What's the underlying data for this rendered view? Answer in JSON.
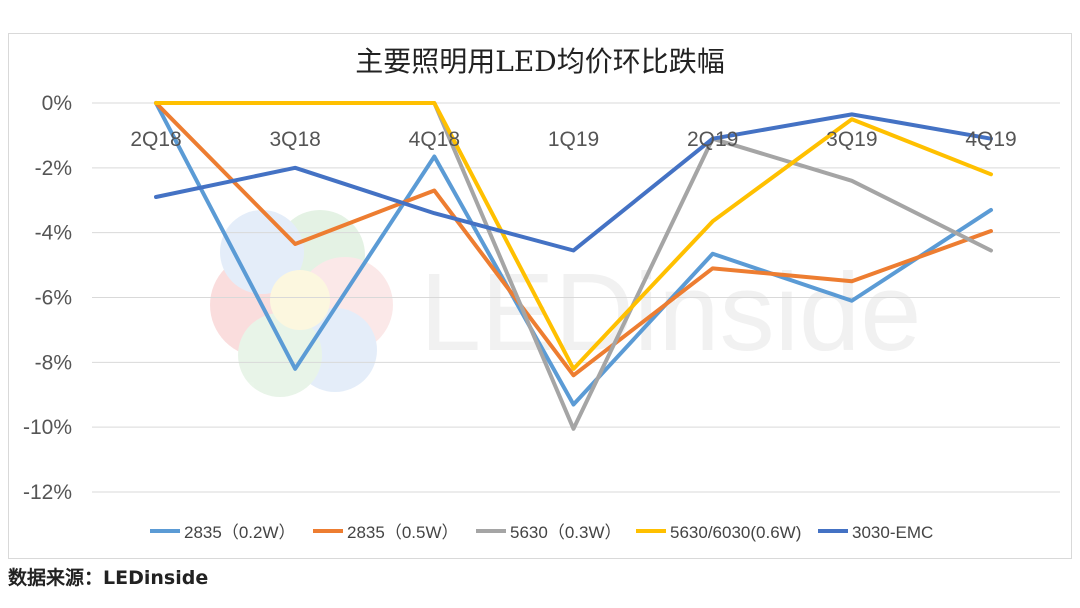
{
  "chart_data": {
    "type": "line",
    "title": "主要照明用LED均价环比跌幅",
    "categories": [
      "2Q18",
      "3Q18",
      "4Q18",
      "1Q19",
      "2Q19",
      "3Q19",
      "4Q19"
    ],
    "ylim": [
      -12,
      0
    ],
    "yticks": [
      0,
      -2,
      -4,
      -6,
      -8,
      -10,
      -12
    ],
    "ytick_labels": [
      "0%",
      "-2%",
      "-4%",
      "-6%",
      "-8%",
      "-10%",
      "-12%"
    ],
    "grid": true,
    "legend_position": "bottom",
    "series": [
      {
        "name": "2835（0.2W）",
        "color": "#5b9bd5",
        "values": [
          0,
          -8.2,
          -1.65,
          -9.3,
          -4.65,
          -6.1,
          -3.3
        ]
      },
      {
        "name": "2835（0.5W）",
        "color": "#ed7d31",
        "values": [
          0,
          -4.35,
          -2.7,
          -8.4,
          -5.1,
          -5.5,
          -3.95
        ]
      },
      {
        "name": "5630（0.3W）",
        "color": "#a5a5a5",
        "values": [
          0,
          0,
          0,
          -10.05,
          -1.1,
          -2.4,
          -4.55
        ]
      },
      {
        "name": "5630/6030(0.6W)",
        "color": "#ffc000",
        "values": [
          0,
          0,
          0,
          -8.2,
          -3.65,
          -0.5,
          -2.2
        ]
      },
      {
        "name": "3030-EMC",
        "color": "#4472c4",
        "values": [
          -2.9,
          -2.0,
          -3.4,
          -4.55,
          -1.1,
          -0.35,
          -1.1
        ]
      }
    ]
  },
  "watermark": {
    "text": "LEDinside"
  },
  "source_label": "数据来源：LEDinside"
}
